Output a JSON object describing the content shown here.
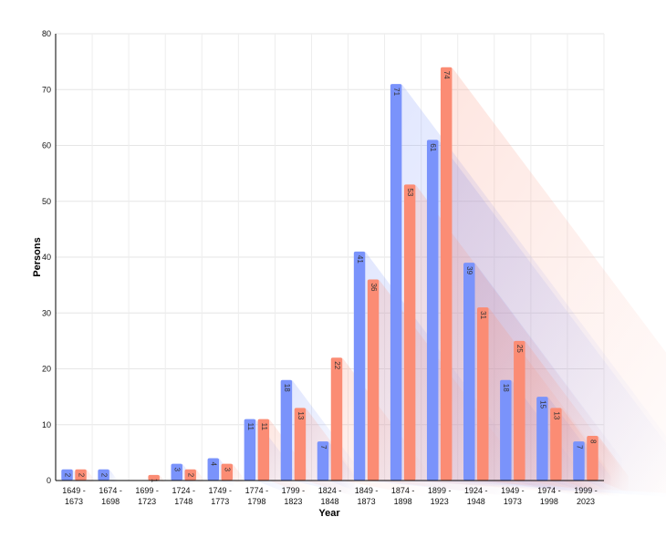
{
  "chart_data": {
    "type": "bar",
    "title": "",
    "xlabel": "Year",
    "ylabel": "Persons",
    "ylim": [
      0,
      80
    ],
    "yticks": [
      0,
      10,
      20,
      30,
      40,
      50,
      60,
      70,
      80
    ],
    "grid": true,
    "categories": [
      [
        "1649 -",
        "1673"
      ],
      [
        "1674 -",
        "1698"
      ],
      [
        "1699 -",
        "1723"
      ],
      [
        "1724 -",
        "1748"
      ],
      [
        "1749 -",
        "1773"
      ],
      [
        "1774 -",
        "1798"
      ],
      [
        "1799 -",
        "1823"
      ],
      [
        "1824 -",
        "1848"
      ],
      [
        "1849 -",
        "1873"
      ],
      [
        "1874 -",
        "1898"
      ],
      [
        "1899 -",
        "1923"
      ],
      [
        "1924 -",
        "1948"
      ],
      [
        "1949 -",
        "1973"
      ],
      [
        "1974 -",
        "1998"
      ],
      [
        "1999 -",
        "2023"
      ]
    ],
    "series": [
      {
        "color": "#7a93fb",
        "values": [
          2,
          2,
          null,
          3,
          4,
          11,
          18,
          7,
          41,
          71,
          61,
          39,
          18,
          15,
          7
        ]
      },
      {
        "color": "#fb8c74",
        "values": [
          2,
          null,
          1,
          2,
          3,
          11,
          13,
          22,
          36,
          53,
          74,
          31,
          25,
          13,
          8
        ]
      }
    ]
  }
}
